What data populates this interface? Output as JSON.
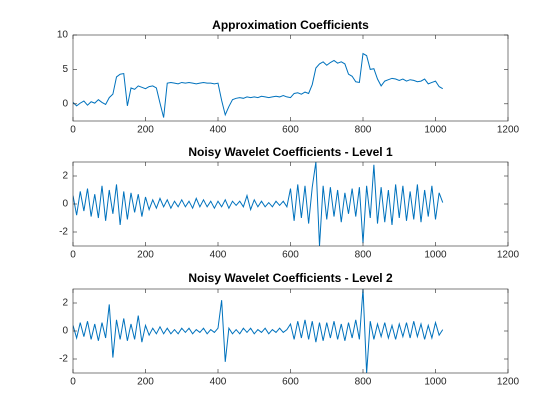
{
  "chart_data": [
    {
      "type": "line",
      "title": "Approximation Coefficients",
      "color": "#0072bd",
      "x": [
        0,
        10,
        20,
        30,
        40,
        50,
        60,
        70,
        80,
        90,
        100,
        110,
        120,
        130,
        140,
        150,
        160,
        170,
        180,
        190,
        200,
        210,
        220,
        230,
        240,
        250,
        260,
        270,
        280,
        290,
        300,
        310,
        320,
        330,
        340,
        350,
        360,
        370,
        380,
        390,
        400,
        410,
        420,
        430,
        440,
        450,
        460,
        470,
        480,
        490,
        500,
        510,
        520,
        530,
        540,
        550,
        560,
        570,
        580,
        590,
        600,
        610,
        620,
        630,
        640,
        650,
        660,
        670,
        680,
        690,
        700,
        710,
        720,
        730,
        740,
        750,
        760,
        770,
        780,
        790,
        800,
        810,
        820,
        830,
        840,
        850,
        860,
        870,
        880,
        890,
        900,
        910,
        920,
        930,
        940,
        950,
        960,
        970,
        980,
        990,
        1000,
        1010,
        1020
      ],
      "values": [
        0.2,
        -0.3,
        0.1,
        0.4,
        -0.2,
        0.3,
        0.1,
        0.6,
        0.2,
        -0.1,
        0.9,
        1.4,
        3.9,
        4.3,
        4.4,
        -0.3,
        2.3,
        2.1,
        2.6,
        2.4,
        2.2,
        2.5,
        2.6,
        2.3,
        0.1,
        -2.0,
        3.0,
        3.1,
        3.0,
        2.9,
        3.1,
        3.0,
        3.1,
        3.0,
        2.9,
        3.0,
        3.1,
        3.0,
        3.0,
        2.9,
        3.0,
        0.5,
        -1.6,
        -0.4,
        0.6,
        0.8,
        0.9,
        0.8,
        1.0,
        0.9,
        1.0,
        0.9,
        1.1,
        1.0,
        0.9,
        1.0,
        1.1,
        1.0,
        1.2,
        1.0,
        0.9,
        1.5,
        1.6,
        1.4,
        1.7,
        1.5,
        2.8,
        5.2,
        5.8,
        6.1,
        5.6,
        6.0,
        6.3,
        5.9,
        6.1,
        5.8,
        4.3,
        4.0,
        3.2,
        3.1,
        7.3,
        7.0,
        5.0,
        5.1,
        3.6,
        2.6,
        3.3,
        3.5,
        3.7,
        3.6,
        3.4,
        3.6,
        3.3,
        3.5,
        3.4,
        3.2,
        3.3,
        3.6,
        2.9,
        3.1,
        3.3,
        2.5,
        2.2
      ],
      "xlim": [
        0,
        1200
      ],
      "xticks": [
        0,
        200,
        400,
        600,
        800,
        1000,
        1200
      ],
      "ylim": [
        -2.5,
        10
      ],
      "yticks": [
        0,
        5,
        10
      ]
    },
    {
      "type": "line",
      "title": "Noisy Wavelet Coefficients - Level 1",
      "color": "#0072bd",
      "x": [
        0,
        10,
        20,
        30,
        40,
        50,
        60,
        70,
        80,
        90,
        100,
        110,
        120,
        130,
        140,
        150,
        160,
        170,
        180,
        190,
        200,
        210,
        220,
        230,
        240,
        250,
        260,
        270,
        280,
        290,
        300,
        310,
        320,
        330,
        340,
        350,
        360,
        370,
        380,
        390,
        400,
        410,
        420,
        430,
        440,
        450,
        460,
        470,
        480,
        490,
        500,
        510,
        520,
        530,
        540,
        550,
        560,
        570,
        580,
        590,
        600,
        610,
        620,
        630,
        640,
        650,
        660,
        670,
        680,
        690,
        700,
        710,
        720,
        730,
        740,
        750,
        760,
        770,
        780,
        790,
        800,
        810,
        820,
        830,
        840,
        850,
        860,
        870,
        880,
        890,
        900,
        910,
        920,
        930,
        940,
        950,
        960,
        970,
        980,
        990,
        1000,
        1010,
        1020
      ],
      "values": [
        0.6,
        -0.8,
        0.9,
        -0.5,
        1.1,
        -0.9,
        0.7,
        -1.0,
        1.3,
        -1.2,
        1.0,
        -0.7,
        1.4,
        -1.5,
        0.9,
        -1.1,
        0.8,
        -0.6,
        0.7,
        -0.9,
        0.5,
        -0.4,
        0.3,
        -0.3,
        0.4,
        -0.2,
        0.3,
        -0.3,
        0.2,
        -0.2,
        0.3,
        -0.2,
        0.2,
        -0.3,
        0.4,
        -0.2,
        0.3,
        -0.2,
        0.2,
        -0.3,
        0.2,
        -0.2,
        0.3,
        -0.3,
        0.2,
        -0.1,
        0.2,
        -0.2,
        0.6,
        -0.4,
        0.3,
        -0.2,
        0.2,
        -0.2,
        0.1,
        -0.2,
        0.2,
        -0.1,
        0.2,
        -0.2,
        1.1,
        -1.2,
        1.4,
        -1.0,
        1.3,
        -1.4,
        1.2,
        3.0,
        -3.0,
        1.3,
        -1.1,
        1.2,
        -0.9,
        1.0,
        -1.3,
        0.8,
        -0.7,
        1.1,
        -0.9,
        1.2,
        -2.8,
        1.3,
        -1.0,
        2.8,
        -1.4,
        1.2,
        -1.3,
        1.0,
        -1.5,
        1.4,
        -1.0,
        1.3,
        -1.2,
        0.9,
        -1.1,
        1.4,
        -1.3,
        1.0,
        -0.9,
        1.3,
        -1.1,
        0.8,
        0.1
      ],
      "xlim": [
        0,
        1200
      ],
      "xticks": [
        0,
        200,
        400,
        600,
        800,
        1000,
        1200
      ],
      "ylim": [
        -3,
        3
      ],
      "yticks": [
        -2,
        0,
        2
      ]
    },
    {
      "type": "line",
      "title": "Noisy Wavelet Coefficients - Level 2",
      "color": "#0072bd",
      "x": [
        0,
        10,
        20,
        30,
        40,
        50,
        60,
        70,
        80,
        90,
        100,
        110,
        120,
        130,
        140,
        150,
        160,
        170,
        180,
        190,
        200,
        210,
        220,
        230,
        240,
        250,
        260,
        270,
        280,
        290,
        300,
        310,
        320,
        330,
        340,
        350,
        360,
        370,
        380,
        390,
        400,
        410,
        420,
        430,
        440,
        450,
        460,
        470,
        480,
        490,
        500,
        510,
        520,
        530,
        540,
        550,
        560,
        570,
        580,
        590,
        600,
        610,
        620,
        630,
        640,
        650,
        660,
        670,
        680,
        690,
        700,
        710,
        720,
        730,
        740,
        750,
        760,
        770,
        780,
        790,
        800,
        810,
        820,
        830,
        840,
        850,
        860,
        870,
        880,
        890,
        900,
        910,
        920,
        930,
        940,
        950,
        960,
        970,
        980,
        990,
        1000,
        1010,
        1020
      ],
      "values": [
        0.4,
        -0.5,
        0.6,
        -0.4,
        0.7,
        -0.6,
        0.5,
        -0.7,
        0.6,
        -0.5,
        1.9,
        -1.9,
        0.8,
        -0.6,
        0.9,
        -0.7,
        0.5,
        -0.6,
        1.1,
        -0.8,
        0.4,
        -0.3,
        0.2,
        -0.2,
        0.3,
        -0.2,
        0.2,
        -0.2,
        0.1,
        -0.2,
        0.2,
        -0.1,
        0.2,
        -0.2,
        0.1,
        -0.1,
        0.2,
        -0.2,
        0.1,
        -0.1,
        0.2,
        2.2,
        -2.2,
        0.2,
        -0.2,
        0.1,
        -0.2,
        0.2,
        -0.1,
        0.2,
        -0.2,
        0.1,
        -0.1,
        0.2,
        -0.2,
        0.1,
        -0.1,
        0.2,
        -0.1,
        0.1,
        0.5,
        -0.6,
        0.7,
        -0.5,
        0.8,
        -0.6,
        0.7,
        -0.8,
        0.6,
        -0.7,
        0.6,
        -0.5,
        0.7,
        -0.6,
        0.5,
        -0.7,
        0.6,
        -0.5,
        0.8,
        -0.6,
        3.0,
        -3.0,
        0.7,
        -0.6,
        0.5,
        -0.4,
        0.6,
        -0.5,
        0.4,
        -0.6,
        0.5,
        -0.4,
        0.6,
        -0.5,
        0.7,
        -0.4,
        0.5,
        -0.6,
        0.4,
        -0.5,
        0.6,
        -0.3,
        0.1
      ],
      "xlim": [
        0,
        1200
      ],
      "xticks": [
        0,
        200,
        400,
        600,
        800,
        1000,
        1200
      ],
      "ylim": [
        -3,
        3
      ],
      "yticks": [
        -2,
        0,
        2
      ]
    }
  ]
}
